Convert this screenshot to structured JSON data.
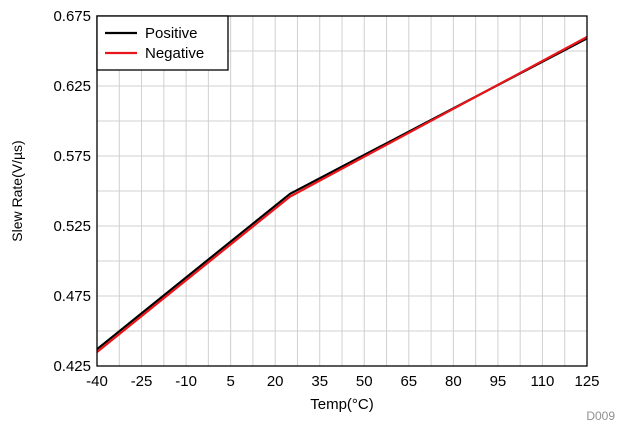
{
  "chart_data": {
    "type": "line",
    "title": "",
    "xlabel": "Temp(°C)",
    "ylabel": "Slew Rate(V/µs)",
    "xlim": [
      -40,
      125
    ],
    "ylim": [
      0.425,
      0.675
    ],
    "x_ticks": [
      -40,
      -25,
      -10,
      5,
      20,
      35,
      50,
      65,
      80,
      95,
      110,
      125
    ],
    "y_ticks": [
      0.425,
      0.475,
      0.525,
      0.575,
      0.625,
      0.675
    ],
    "x_tick_labels": [
      "-40",
      "-25",
      "-10",
      "5",
      "20",
      "35",
      "50",
      "65",
      "80",
      "95",
      "110",
      "125"
    ],
    "y_tick_labels": [
      "0.425",
      "0.475",
      "0.525",
      "0.575",
      "0.625",
      "0.675"
    ],
    "x_minor_ticks": [
      -32.5,
      -17.5,
      -2.5,
      12.5,
      27.5,
      42.5,
      57.5,
      72.5,
      87.5,
      102.5,
      117.5
    ],
    "y_minor_ticks": [
      0.45,
      0.5,
      0.55,
      0.6,
      0.65
    ],
    "grid": true,
    "legend_position": "top-left",
    "series": [
      {
        "name": "Positive",
        "color": "#000000",
        "x": [
          -40,
          25,
          125
        ],
        "y": [
          0.437,
          0.548,
          0.659
        ]
      },
      {
        "name": "Negative",
        "color": "#e8161b",
        "x": [
          -40,
          25,
          125
        ],
        "y": [
          0.435,
          0.546,
          0.66
        ]
      }
    ],
    "annotation": "D009"
  }
}
